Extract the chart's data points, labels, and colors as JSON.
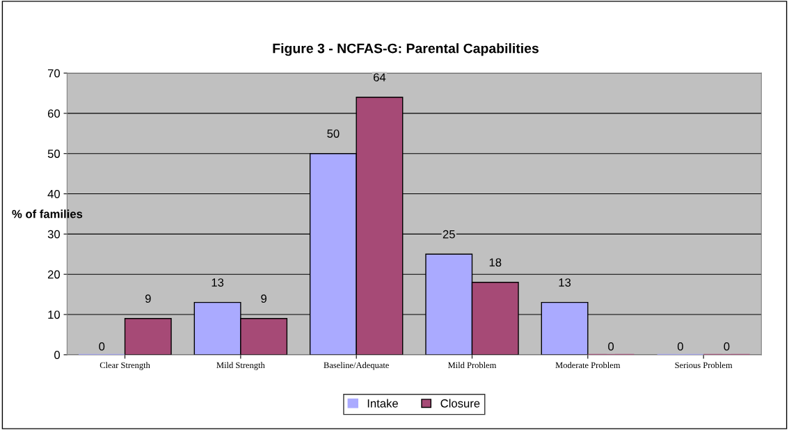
{
  "chart_data": {
    "type": "bar",
    "title": "Figure 3 - NCFAS-G: Parental Capabilities",
    "ylabel": "% of families",
    "categories": [
      "Clear Strength",
      "Mild Strength",
      "Baseline/Adequate",
      "Mild Problem",
      "Moderate Problem",
      "Serious Problem"
    ],
    "series": [
      {
        "name": "Intake",
        "color": "#aaaaff",
        "values": [
          0,
          13,
          50,
          25,
          13,
          0
        ]
      },
      {
        "name": "Closure",
        "color": "#a64a76",
        "values": [
          9,
          9,
          64,
          18,
          0,
          0
        ]
      }
    ],
    "ylim": [
      0,
      70
    ],
    "yticks": [
      0,
      10,
      20,
      30,
      40,
      50,
      60,
      70
    ],
    "grid": "y",
    "legend": "bottom",
    "data_labels": true
  }
}
